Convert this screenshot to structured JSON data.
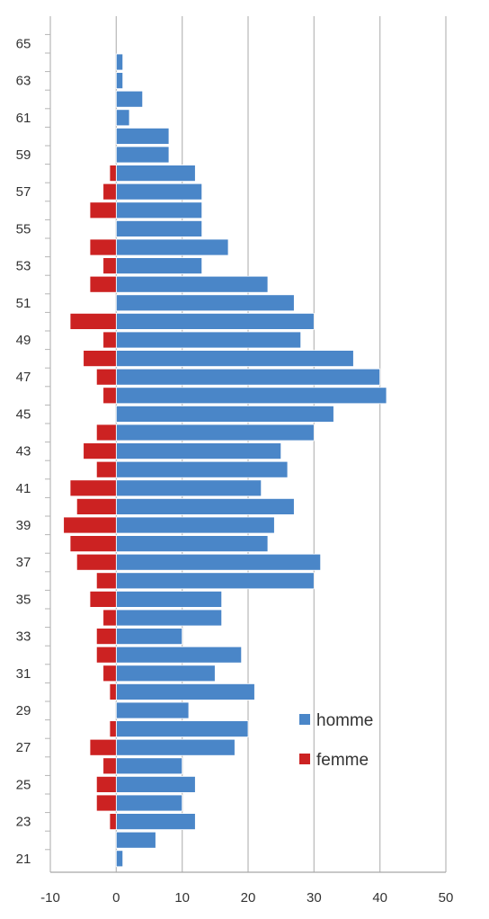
{
  "chart_data": {
    "type": "bar",
    "orientation": "horizontal",
    "stacked": true,
    "xlim": [
      -10,
      50
    ],
    "x_ticks": [
      "-10",
      "0",
      "10",
      "20",
      "30",
      "40",
      "50"
    ],
    "y_tick_labels": [
      "21",
      "23",
      "25",
      "27",
      "29",
      "31",
      "33",
      "35",
      "37",
      "39",
      "41",
      "43",
      "45",
      "47",
      "49",
      "51",
      "53",
      "55",
      "57",
      "59",
      "61",
      "63",
      "65"
    ],
    "grid": "vertical",
    "legend_position": "right-lower",
    "categories": [
      21,
      22,
      23,
      24,
      25,
      26,
      27,
      28,
      29,
      30,
      31,
      32,
      33,
      34,
      35,
      36,
      37,
      38,
      39,
      40,
      41,
      42,
      43,
      44,
      45,
      46,
      47,
      48,
      49,
      50,
      51,
      52,
      53,
      54,
      55,
      56,
      57,
      58,
      59,
      60,
      61,
      62,
      63,
      64
    ],
    "series": [
      {
        "name": "homme",
        "color": "#4a86c8",
        "values": [
          1,
          6,
          12,
          10,
          12,
          10,
          18,
          20,
          11,
          21,
          15,
          19,
          10,
          16,
          16,
          30,
          31,
          23,
          24,
          27,
          22,
          26,
          25,
          30,
          33,
          41,
          40,
          36,
          28,
          30,
          27,
          23,
          13,
          17,
          13,
          13,
          13,
          12,
          8,
          8,
          2,
          4,
          1,
          1
        ]
      },
      {
        "name": "femme",
        "color": "#cc2222",
        "values": [
          0,
          0,
          -1,
          -3,
          -3,
          -2,
          -4,
          -1,
          0,
          -1,
          -2,
          -3,
          -3,
          -2,
          -4,
          -3,
          -6,
          -7,
          -8,
          -6,
          -7,
          -3,
          -5,
          -3,
          0,
          -2,
          -3,
          -5,
          -2,
          -7,
          0,
          -4,
          -2,
          -4,
          0,
          -4,
          -2,
          -1,
          0,
          0,
          0,
          0,
          0,
          0
        ]
      }
    ]
  }
}
